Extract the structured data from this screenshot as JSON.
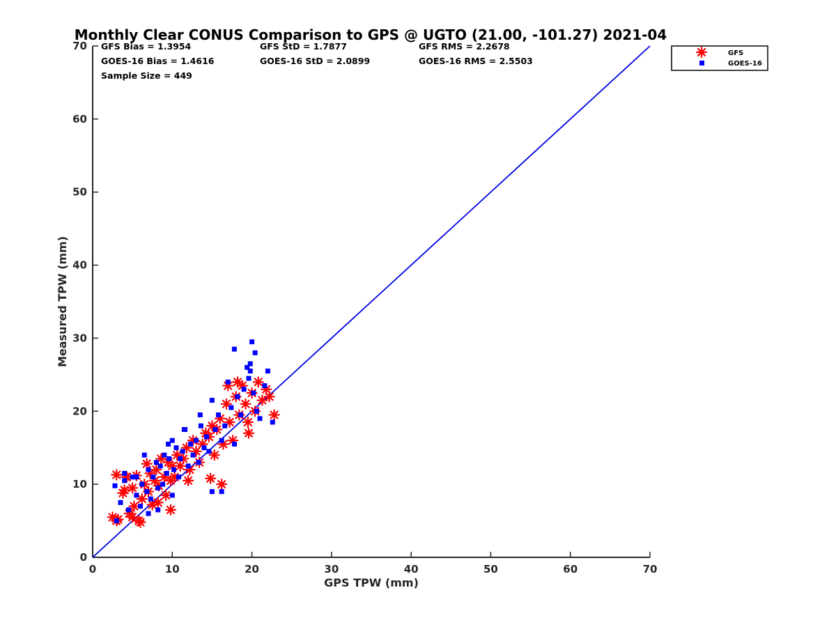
{
  "chart_data": {
    "type": "scatter",
    "title": "Monthly Clear CONUS Comparison to GPS @ UGTO (21.00, -101.27) 2021-04",
    "xlabel": "GPS TPW (mm)",
    "ylabel": "Measured TPW (mm)",
    "xlim": [
      0,
      70
    ],
    "ylim": [
      0,
      70
    ],
    "xticks": [
      "0",
      "10",
      "20",
      "30",
      "40",
      "50",
      "60",
      "70"
    ],
    "yticks": [
      "0",
      "10",
      "20",
      "30",
      "40",
      "50",
      "60",
      "70"
    ],
    "reference_line": {
      "name": "1:1 line",
      "x": [
        0,
        70
      ],
      "y": [
        0,
        70
      ],
      "color": "#0000e6"
    },
    "stats": {
      "gfs_bias": "GFS Bias = 1.3954",
      "gfs_std": "GFS StD = 1.7877",
      "gfs_rms": "GFS RMS = 2.2678",
      "goes_bias": "GOES-16 Bias = 1.4616",
      "goes_std": "GOES-16 StD = 2.0899",
      "goes_rms": "GOES-16 RMS = 2.5503",
      "sample_size": "Sample Size = 449"
    },
    "legend": {
      "position": "outside-top-right",
      "entries": [
        {
          "label": "GFS",
          "marker": "asterisk",
          "color": "#ff0000"
        },
        {
          "label": "GOES-16",
          "marker": "square",
          "color": "#0000ff"
        }
      ]
    },
    "series": [
      {
        "name": "GFS",
        "marker": "asterisk",
        "color": "#ff0000",
        "x": [
          2.5,
          3.0,
          3.2,
          3.8,
          4.0,
          4.3,
          4.6,
          5.0,
          5.2,
          5.5,
          5.8,
          6.2,
          6.5,
          6.8,
          7.0,
          7.2,
          7.5,
          7.8,
          8.0,
          8.3,
          8.6,
          9.0,
          9.2,
          9.5,
          9.8,
          10.0,
          10.3,
          10.6,
          11.0,
          11.4,
          11.8,
          12.2,
          12.6,
          13.0,
          13.4,
          13.8,
          14.2,
          14.6,
          15.0,
          15.3,
          15.6,
          16.0,
          16.4,
          16.8,
          17.2,
          17.6,
          18.0,
          18.4,
          18.8,
          19.2,
          19.6,
          20.0,
          20.4,
          20.8,
          21.3,
          21.8,
          22.2,
          22.8,
          16.2,
          9.8,
          3.0,
          6.0,
          5.0,
          4.2,
          8.2,
          12.0,
          14.8,
          17.0,
          19.5,
          18.2
        ],
        "y": [
          5.5,
          11.3,
          5.2,
          8.8,
          9.2,
          11.0,
          6.0,
          9.5,
          7.0,
          11.2,
          5.0,
          8.0,
          10.0,
          12.8,
          9.0,
          11.5,
          7.2,
          10.5,
          12.0,
          9.8,
          13.5,
          11.0,
          8.5,
          13.0,
          10.5,
          12.5,
          11.0,
          14.0,
          12.5,
          13.5,
          15.0,
          12.0,
          16.0,
          14.5,
          13.0,
          15.5,
          17.0,
          16.5,
          18.0,
          14.0,
          17.5,
          19.0,
          15.5,
          21.0,
          18.5,
          16.0,
          22.0,
          19.5,
          23.5,
          21.0,
          17.0,
          22.5,
          20.0,
          24.0,
          21.5,
          23.0,
          22.0,
          19.5,
          10.0,
          6.5,
          5.0,
          4.8,
          5.5,
          11.0,
          7.5,
          10.5,
          10.8,
          23.5,
          18.5,
          24.0
        ]
      },
      {
        "name": "GOES-16",
        "marker": "square",
        "color": "#0000ff",
        "x": [
          2.8,
          3.5,
          4.0,
          4.5,
          5.0,
          5.5,
          6.0,
          6.2,
          6.8,
          7.0,
          7.3,
          7.6,
          8.0,
          8.2,
          8.5,
          8.8,
          9.0,
          9.3,
          9.6,
          10.0,
          10.2,
          10.5,
          10.8,
          11.0,
          11.3,
          11.6,
          12.0,
          12.3,
          12.6,
          13.0,
          13.3,
          13.6,
          14.0,
          14.3,
          14.6,
          15.0,
          15.4,
          15.8,
          16.2,
          16.6,
          17.0,
          17.4,
          17.8,
          18.2,
          18.6,
          19.0,
          19.4,
          19.8,
          20.2,
          20.6,
          21.0,
          21.6,
          22.0,
          22.6,
          17.8,
          20.0,
          20.4,
          19.6,
          19.8,
          15.0,
          16.2,
          9.5,
          11.5,
          13.5,
          7.0,
          6.5,
          5.5,
          4.0,
          3.0,
          8.2,
          10.0
        ],
        "y": [
          9.8,
          7.5,
          10.5,
          6.5,
          11.0,
          8.5,
          7.0,
          10.0,
          9.0,
          12.0,
          8.0,
          11.0,
          13.0,
          9.5,
          12.5,
          10.0,
          14.0,
          11.5,
          13.5,
          16.0,
          12.0,
          15.0,
          11.0,
          13.5,
          14.5,
          17.5,
          12.5,
          15.5,
          14.0,
          16.0,
          13.0,
          18.0,
          15.0,
          16.5,
          14.5,
          21.5,
          17.5,
          19.5,
          16.0,
          18.0,
          24.0,
          20.5,
          15.5,
          22.0,
          19.5,
          23.0,
          26.0,
          25.5,
          22.5,
          20.0,
          19.0,
          23.5,
          25.5,
          18.5,
          28.5,
          29.5,
          28.0,
          24.5,
          26.5,
          9.0,
          9.0,
          15.5,
          17.5,
          19.5,
          6.0,
          14.0,
          11.0,
          11.5,
          5.0,
          6.5,
          8.5
        ]
      }
    ]
  }
}
